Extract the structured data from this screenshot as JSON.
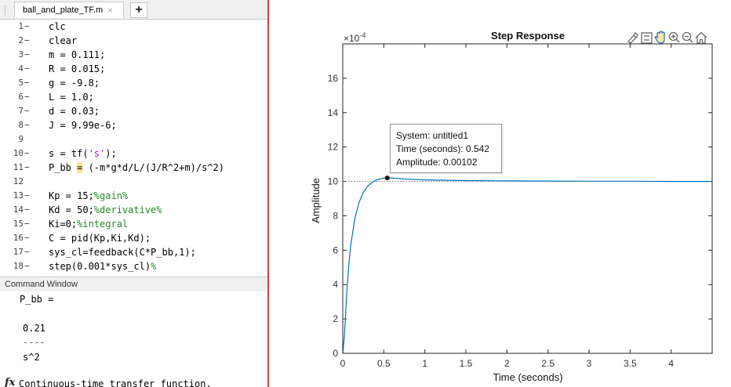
{
  "editor": {
    "tab_title": "ball_and_plate_TF.m",
    "tab_close": "×",
    "new_tab": "+",
    "lines": [
      {
        "n": "1",
        "m": "−",
        "code": "clc"
      },
      {
        "n": "2",
        "m": "−",
        "code": "clear"
      },
      {
        "n": "3",
        "m": "−",
        "code": "m = 0.111;"
      },
      {
        "n": "4",
        "m": "−",
        "code": "R = 0.015;"
      },
      {
        "n": "5",
        "m": "−",
        "code": "g = -9.8;"
      },
      {
        "n": "6",
        "m": "−",
        "code": "L = 1.0;"
      },
      {
        "n": "7",
        "m": "−",
        "code": "d = 0.03;"
      },
      {
        "n": "8",
        "m": "−",
        "code": "J = 9.99e-6;"
      },
      {
        "n": "9",
        "m": "",
        "code": ""
      },
      {
        "n": "10",
        "m": "−",
        "pre": "s = tf(",
        "str": "'s'",
        "post": ");"
      },
      {
        "n": "11",
        "m": "−",
        "pre": "P_bb ",
        "hl": "=",
        "post": " (-m*g*d/L/(J/R^2+m)/s^2)"
      },
      {
        "n": "12",
        "m": "",
        "code": ""
      },
      {
        "n": "13",
        "m": "−",
        "pre": "Kp = 15;",
        "cmt": "%gain%"
      },
      {
        "n": "14",
        "m": "−",
        "pre": "Kd = 50;",
        "cmt": "%derivative%"
      },
      {
        "n": "15",
        "m": "−",
        "pre": "Ki=0;",
        "cmt": "%integral"
      },
      {
        "n": "16",
        "m": "−",
        "code": "C = pid(Kp,Ki,Kd);"
      },
      {
        "n": "17",
        "m": "−",
        "code": "sys_cl=feedback(C*P_bb,1);"
      },
      {
        "n": "18",
        "m": "−",
        "pre": "step(0.001*sys_cl)",
        "cmt": "%"
      }
    ]
  },
  "command_window": {
    "title": "Command Window",
    "lines": [
      "P_bb =",
      "",
      "0.21",
      "----",
      "s^2"
    ],
    "fx_label": "fx",
    "last_line": "Continuous-time transfer function."
  },
  "figure": {
    "toolbar_icons": [
      "brush-icon",
      "legend-icon",
      "pan-icon",
      "zoom-in-icon",
      "zoom-out-icon",
      "home-icon"
    ]
  },
  "chart_data": {
    "type": "line",
    "title": "Step Response",
    "xlabel": "Time (seconds)",
    "ylabel": "Amplitude",
    "y_exponent_label": "×10",
    "y_exponent_power": "-4",
    "xlim": [
      0,
      4.5
    ],
    "ylim": [
      0,
      18
    ],
    "xticks": [
      "0",
      "0.5",
      "1",
      "1.5",
      "2",
      "2.5",
      "3",
      "3.5",
      "4"
    ],
    "yticks": [
      "0",
      "2",
      "4",
      "6",
      "8",
      "10",
      "12",
      "14",
      "16"
    ],
    "steady_state": 10.0,
    "series": [
      {
        "color": "#0072bd",
        "x": [
          0,
          0.02,
          0.05,
          0.08,
          0.1,
          0.15,
          0.2,
          0.25,
          0.3,
          0.35,
          0.4,
          0.45,
          0.5,
          0.542,
          0.6,
          0.7,
          0.8,
          1.0,
          1.5,
          2,
          2.5,
          3,
          3.5,
          4,
          4.5
        ],
        "y": [
          0,
          1.0,
          3.6,
          5.5,
          6.4,
          7.9,
          8.8,
          9.35,
          9.7,
          9.92,
          10.06,
          10.14,
          10.19,
          10.2,
          10.19,
          10.16,
          10.13,
          10.09,
          10.05,
          10.03,
          10.02,
          10.01,
          10.01,
          10.0,
          10.0
        ]
      }
    ],
    "datatip": {
      "x": 0.542,
      "y": 10.2,
      "system": "System: untitled1",
      "time": "Time (seconds): 0.542",
      "amplitude": "Amplitude: 0.00102"
    }
  }
}
